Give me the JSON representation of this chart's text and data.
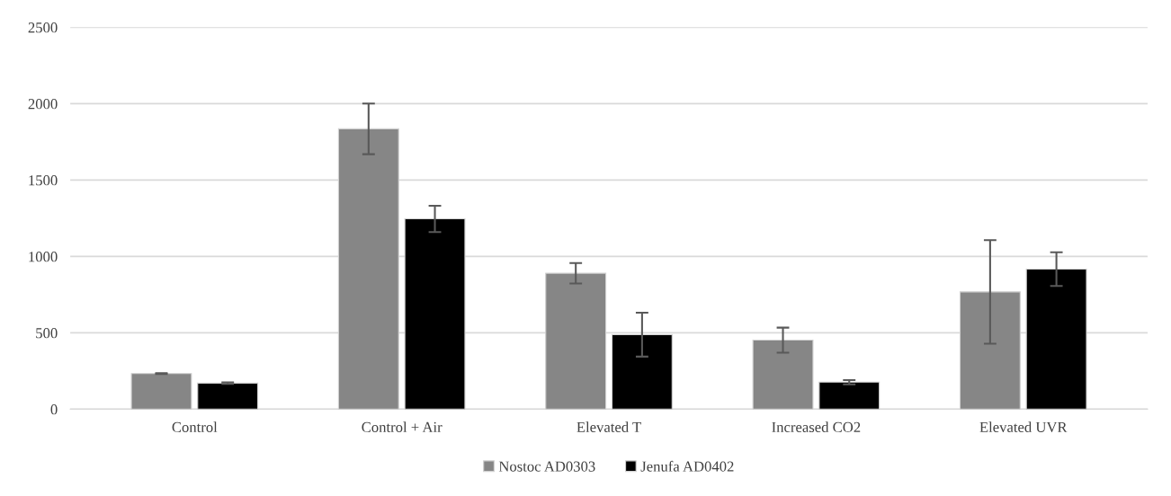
{
  "chart_data": {
    "type": "bar",
    "categories": [
      "Control",
      "Control + Air",
      "Elevated T",
      "Increased CO2",
      "Elevated UVR"
    ],
    "series": [
      {
        "name": "Nostoc AD0303",
        "color": "#868686",
        "values": [
          233,
          1835,
          890,
          452,
          768
        ],
        "errors": [
          3,
          166,
          67,
          82,
          339
        ]
      },
      {
        "name": "Jenufa AD0402",
        "color": "#000000",
        "values": [
          171,
          1246,
          488,
          177,
          917
        ],
        "errors": [
          5,
          86,
          144,
          14,
          110
        ]
      }
    ],
    "ylim": [
      0,
      2500
    ],
    "yticks": [
      0,
      500,
      1000,
      1500,
      2000,
      2500
    ],
    "grid": "y",
    "legend": "bottom"
  }
}
